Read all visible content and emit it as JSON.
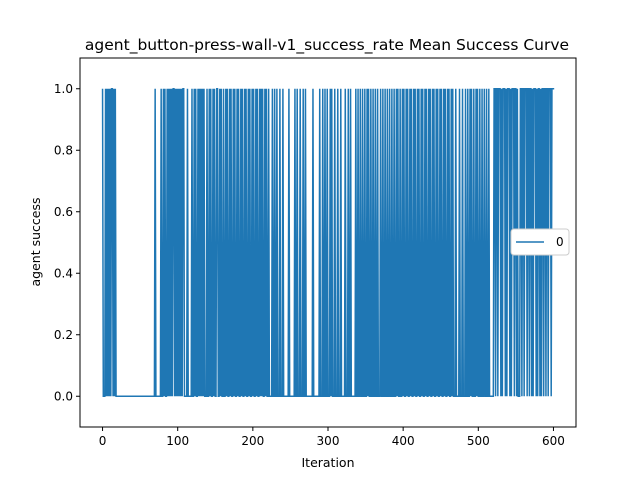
{
  "chart_data": {
    "type": "line",
    "title": "agent_button-press-wall-v1_success_rate Mean Success Curve",
    "xlabel": "Iteration",
    "ylabel": "agent success",
    "xlim": [
      -30,
      630
    ],
    "ylim": [
      -0.1,
      1.1
    ],
    "xticks": [
      0,
      100,
      200,
      300,
      400,
      500,
      600
    ],
    "yticks": [
      0.0,
      0.2,
      0.4,
      0.6,
      0.8,
      1.0
    ],
    "ytick_labels": [
      "0.0",
      "0.2",
      "0.4",
      "0.6",
      "0.8",
      "1.0"
    ],
    "legend_position": "center-right",
    "grid": false,
    "series": [
      {
        "name": "0",
        "color": "#1f77b4",
        "x_range": [
          0,
          601
        ],
        "success_iterations": [
          0,
          4,
          6,
          8,
          10,
          12,
          13,
          15,
          17,
          70,
          78,
          81,
          83,
          86,
          88,
          90,
          92,
          94,
          95,
          97,
          99,
          101,
          103,
          105,
          107,
          108,
          113,
          119,
          122,
          124,
          127,
          129,
          131,
          133,
          135,
          139,
          142,
          144,
          147,
          149,
          152,
          153,
          156,
          158,
          161,
          164,
          166,
          169,
          171,
          174,
          176,
          179,
          181,
          184,
          186,
          189,
          191,
          194,
          196,
          199,
          201,
          204,
          206,
          209,
          211,
          213,
          216,
          218,
          221,
          226,
          229,
          232,
          236,
          240,
          248,
          256,
          259,
          263,
          267,
          270,
          280,
          289,
          293,
          296,
          299,
          303,
          305,
          309,
          313,
          317,
          323,
          327,
          330,
          337,
          340,
          343,
          346,
          349,
          352,
          354,
          357,
          360,
          363,
          366,
          370,
          373,
          376,
          379,
          382,
          385,
          388,
          391,
          393,
          396,
          399,
          401,
          404,
          406,
          409,
          411,
          414,
          416,
          419,
          421,
          424,
          426,
          429,
          431,
          434,
          436,
          439,
          441,
          444,
          446,
          449,
          451,
          454,
          456,
          459,
          461,
          464,
          466,
          470,
          475,
          479,
          483,
          486,
          489,
          491,
          494,
          497,
          499,
          502,
          505,
          508,
          511,
          514,
          521,
          522,
          524,
          525,
          527,
          528,
          529,
          531,
          533,
          534,
          535,
          537,
          539,
          540,
          541,
          543,
          545,
          546,
          547,
          549,
          550,
          552,
          556,
          557,
          559,
          560,
          562,
          563,
          564,
          566,
          567,
          569,
          570,
          572,
          574,
          575,
          576,
          578,
          580,
          581,
          583,
          585,
          586,
          588,
          589,
          591,
          592,
          594,
          595,
          596,
          598,
          599,
          600,
          601
        ],
        "note_values": "y=1.0 at listed success_iterations, otherwise 0.0"
      }
    ]
  }
}
